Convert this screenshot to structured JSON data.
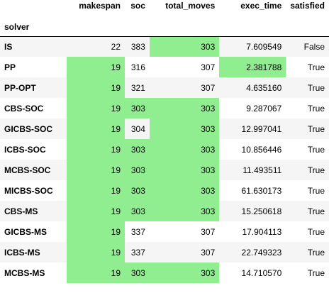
{
  "table": {
    "index_name": "solver",
    "columns": [
      "makespan",
      "soc",
      "total_moves",
      "exec_time",
      "satisfied"
    ],
    "highlight_color": "#90ee90",
    "stripe_color": "#f5f5f5",
    "rows": [
      {
        "solver": "IS",
        "values": [
          "22",
          "383",
          "303",
          "7.609549",
          "False"
        ],
        "highlight": [
          false,
          false,
          true,
          false,
          false
        ]
      },
      {
        "solver": "PP",
        "values": [
          "19",
          "316",
          "307",
          "2.381788",
          "True"
        ],
        "highlight": [
          true,
          false,
          false,
          true,
          false
        ]
      },
      {
        "solver": "PP-OPT",
        "values": [
          "19",
          "321",
          "307",
          "4.635160",
          "True"
        ],
        "highlight": [
          true,
          false,
          false,
          false,
          false
        ]
      },
      {
        "solver": "CBS-SOC",
        "values": [
          "19",
          "303",
          "303",
          "9.287067",
          "True"
        ],
        "highlight": [
          true,
          true,
          true,
          false,
          false
        ]
      },
      {
        "solver": "GICBS-SOC",
        "values": [
          "19",
          "304",
          "303",
          "12.997041",
          "True"
        ],
        "highlight": [
          true,
          false,
          true,
          false,
          false
        ]
      },
      {
        "solver": "ICBS-SOC",
        "values": [
          "19",
          "303",
          "303",
          "10.856446",
          "True"
        ],
        "highlight": [
          true,
          true,
          true,
          false,
          false
        ]
      },
      {
        "solver": "MCBS-SOC",
        "values": [
          "19",
          "303",
          "303",
          "11.493511",
          "True"
        ],
        "highlight": [
          true,
          true,
          true,
          false,
          false
        ]
      },
      {
        "solver": "MICBS-SOC",
        "values": [
          "19",
          "303",
          "303",
          "61.630173",
          "True"
        ],
        "highlight": [
          true,
          true,
          true,
          false,
          false
        ]
      },
      {
        "solver": "CBS-MS",
        "values": [
          "19",
          "303",
          "303",
          "15.250618",
          "True"
        ],
        "highlight": [
          true,
          true,
          true,
          false,
          false
        ]
      },
      {
        "solver": "GICBS-MS",
        "values": [
          "19",
          "337",
          "307",
          "17.904113",
          "True"
        ],
        "highlight": [
          true,
          false,
          false,
          false,
          false
        ]
      },
      {
        "solver": "ICBS-MS",
        "values": [
          "19",
          "337",
          "307",
          "22.749323",
          "True"
        ],
        "highlight": [
          true,
          false,
          false,
          false,
          false
        ]
      },
      {
        "solver": "MCBS-MS",
        "values": [
          "19",
          "303",
          "303",
          "14.710570",
          "True"
        ],
        "highlight": [
          true,
          true,
          true,
          false,
          false
        ]
      }
    ]
  }
}
